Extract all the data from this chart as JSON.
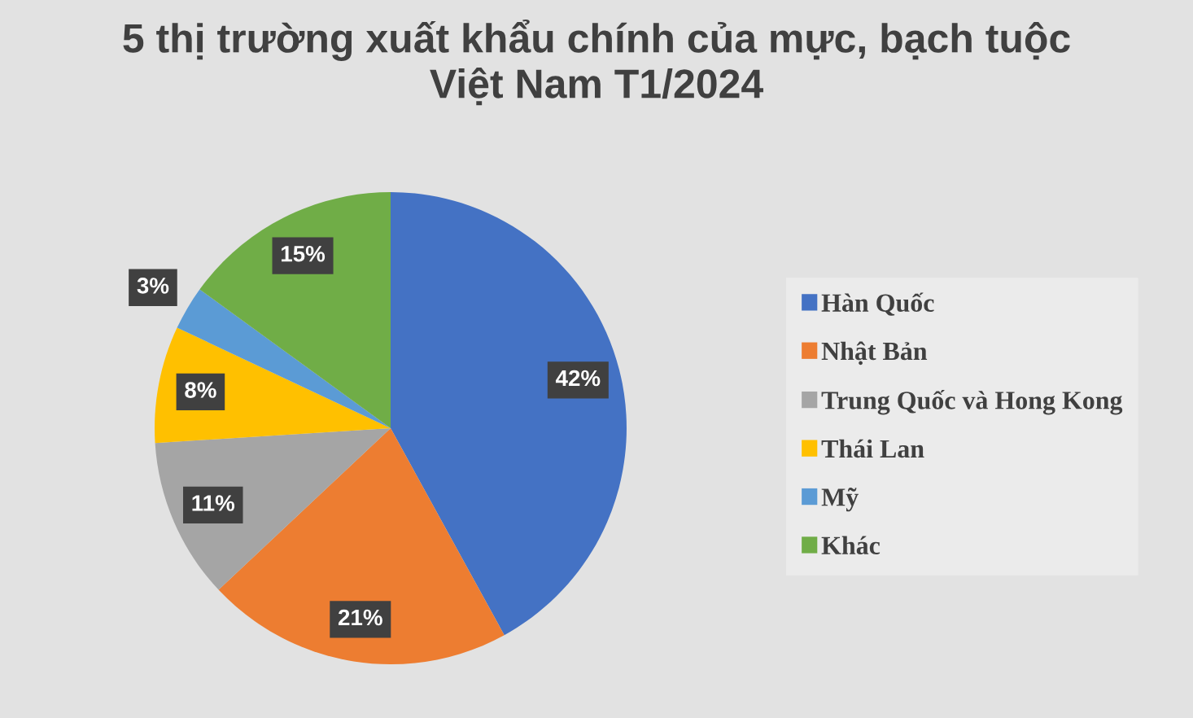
{
  "chart_data": {
    "type": "pie",
    "title": "5 thị trường xuất khẩu chính của mực, bạch tuộc\nViệt Nam T1/2024",
    "categories": [
      "Hàn Quốc",
      "Nhật Bản",
      "Trung Quốc và Hong Kong",
      "Thái Lan",
      "Mỹ",
      "Khác"
    ],
    "values": [
      42,
      21,
      11,
      8,
      3,
      15
    ],
    "colors": [
      "#4472c4",
      "#ed7d31",
      "#a5a5a5",
      "#ffc000",
      "#5b9bd5",
      "#70ad47"
    ],
    "value_labels": [
      "42%",
      "21%",
      "11%",
      "8%",
      "3%",
      "15%"
    ],
    "legend": "right"
  }
}
